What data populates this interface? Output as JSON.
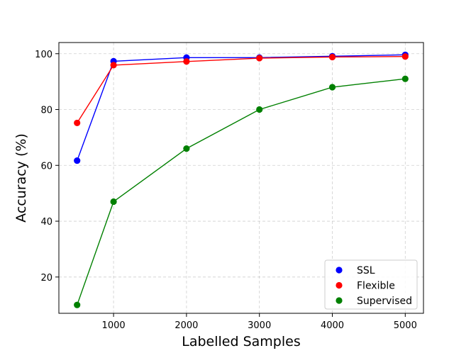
{
  "chart_data": {
    "type": "line",
    "title": "",
    "xlabel": "Labelled Samples",
    "ylabel": "Accuracy (%)",
    "x": [
      500,
      1000,
      2000,
      3000,
      4000,
      5000
    ],
    "xlim": [
      250,
      5250
    ],
    "ylim": [
      7,
      104
    ],
    "xticks": [
      1000,
      2000,
      3000,
      4000,
      5000
    ],
    "yticks": [
      20,
      40,
      60,
      80,
      100
    ],
    "grid": true,
    "legend_position": "lower-right",
    "series": [
      {
        "name": "SSL",
        "color": "#0000ff",
        "values": [
          61.7,
          97.3,
          98.6,
          98.6,
          99.1,
          99.6
        ]
      },
      {
        "name": "Flexible",
        "color": "#ff0000",
        "values": [
          75.2,
          95.9,
          97.2,
          98.4,
          98.8,
          99.0
        ]
      },
      {
        "name": "Supervised",
        "color": "#008000",
        "values": [
          10.0,
          47.0,
          66.0,
          80.0,
          88.0,
          91.0
        ]
      }
    ]
  }
}
